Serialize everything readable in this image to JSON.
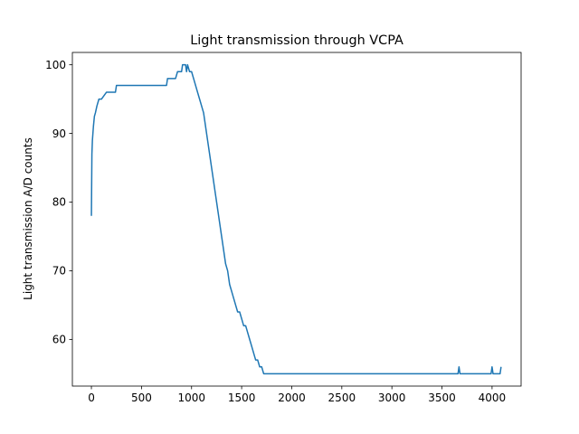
{
  "chart_data": {
    "type": "line",
    "title": "Light transmission through VCPA",
    "xlabel": "",
    "ylabel": "Light transmission A/D counts",
    "xlim": [
      -190,
      4290
    ],
    "ylim": [
      53.2,
      101.8
    ],
    "xticks": [
      0,
      500,
      1000,
      1500,
      2000,
      2500,
      3000,
      3500,
      4000
    ],
    "yticks": [
      60,
      70,
      80,
      90,
      100
    ],
    "grid": false,
    "line_color": "#1f77b4",
    "series": [
      {
        "x": [
          0,
          5,
          10,
          20,
          30,
          40,
          55,
          75,
          100,
          150,
          200,
          240,
          250,
          300,
          400,
          500,
          600,
          700,
          750,
          760,
          780,
          800,
          840,
          860,
          880,
          900,
          910,
          920,
          930,
          940,
          950,
          960,
          980,
          1000,
          1020,
          1040,
          1060,
          1080,
          1100,
          1120,
          1140,
          1160,
          1180,
          1200,
          1220,
          1240,
          1260,
          1280,
          1300,
          1320,
          1340,
          1360,
          1380,
          1400,
          1420,
          1440,
          1460,
          1480,
          1500,
          1520,
          1540,
          1560,
          1580,
          1600,
          1620,
          1640,
          1660,
          1680,
          1700,
          1720,
          1740,
          1760,
          1780,
          1800,
          2000,
          2500,
          3000,
          3500,
          3660,
          3670,
          3680,
          3690,
          3700,
          3990,
          4000,
          4010,
          4020,
          4070,
          4080,
          4090
        ],
        "y": [
          78,
          87,
          89,
          91,
          92.5,
          93,
          94,
          95,
          95,
          96,
          96,
          96,
          97,
          97,
          97,
          97,
          97,
          97,
          97,
          98,
          98,
          98,
          98,
          99,
          99,
          99,
          100,
          100,
          100,
          100,
          99,
          100,
          99,
          99,
          98,
          97,
          96,
          95,
          94,
          93,
          91,
          89,
          87,
          85,
          83,
          81,
          79,
          77,
          75,
          73,
          71,
          70,
          68,
          67,
          66,
          65,
          64,
          64,
          63,
          62,
          62,
          61,
          60,
          59,
          58,
          57,
          57,
          56,
          56,
          55,
          55,
          55,
          55,
          55,
          55,
          55,
          55,
          55,
          55,
          56,
          55,
          55,
          55,
          55,
          56,
          55,
          55,
          55,
          55,
          56
        ]
      }
    ]
  }
}
